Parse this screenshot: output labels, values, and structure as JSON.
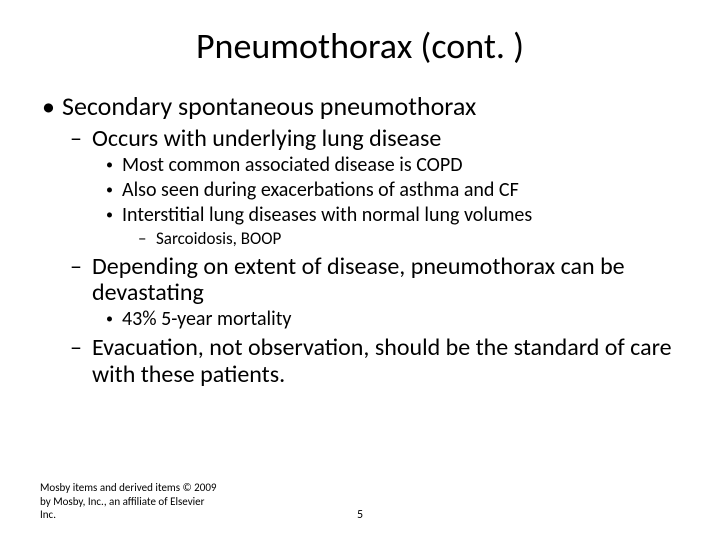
{
  "title": "Pneumothorax (cont. )",
  "bullets": {
    "l1": "Secondary spontaneous pneumothorax",
    "l2a": "Occurs with underlying lung disease",
    "l3a": "Most common associated disease is COPD",
    "l3b": "Also seen during exacerbations of asthma and CF",
    "l3c": "Interstitial lung diseases with normal lung volumes",
    "l4a": "Sarcoidosis, BOOP",
    "l2b": "Depending on extent of disease, pneumothorax can be devastating",
    "l3d": "43% 5-year mortality",
    "l2c": "Evacuation, not observation, should be the standard of care with these patients."
  },
  "footer": {
    "copyright": "Mosby items and derived items © 2009 by Mosby, Inc., an affiliate of Elsevier Inc.",
    "page": "5"
  },
  "style": {
    "background": "#ffffff",
    "text_color": "#000000",
    "title_fontsize": 36,
    "l1_fontsize": 26,
    "l2_fontsize": 24,
    "l3_fontsize": 20,
    "l4_fontsize": 17,
    "footer_fontsize": 11
  }
}
